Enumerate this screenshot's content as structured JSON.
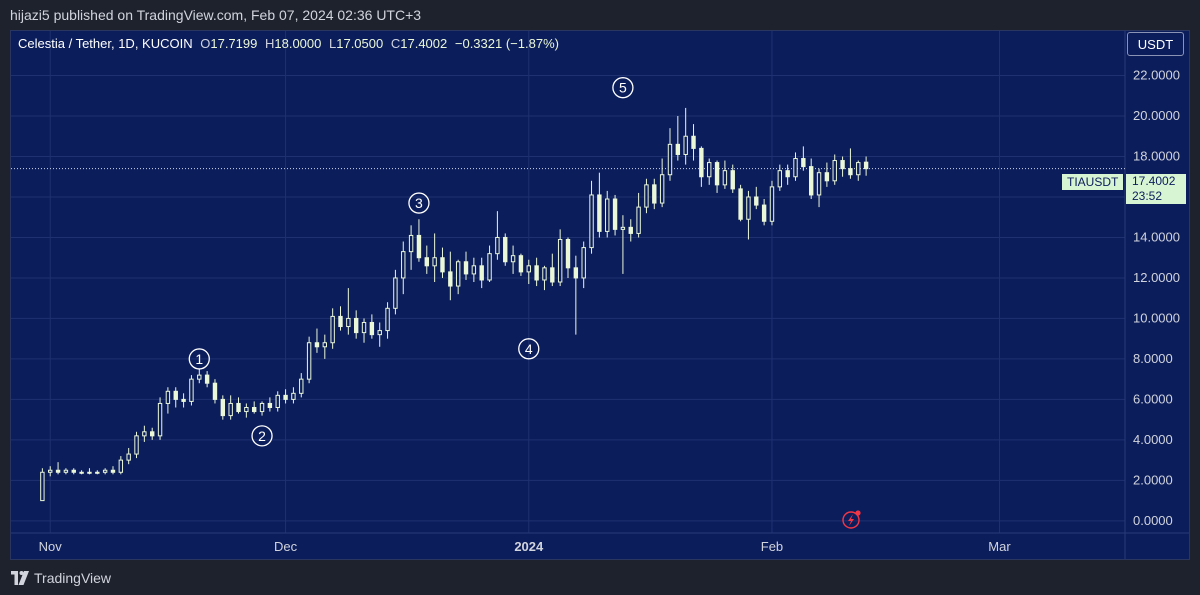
{
  "header": {
    "published_text": "hijazi5 published on TradingView.com, Feb 07, 2024 02:36 UTC+3"
  },
  "legend": {
    "symbol_text": "Celestia / Tether, 1D, KUCOIN",
    "o_label": "O",
    "o_value": "17.7199",
    "h_label": "H",
    "h_value": "18.0000",
    "l_label": "L",
    "l_value": "17.0500",
    "c_label": "C",
    "c_value": "17.4002",
    "change_text": "−0.3321 (−1.87%)"
  },
  "currency_button": "USDT",
  "price_tag": {
    "symbol": "TIAUSDT",
    "price": "17.4002",
    "countdown": "23:52"
  },
  "footer": {
    "brand": "TradingView"
  },
  "colors": {
    "background": "#0c1d5c",
    "candle": "#eaf8d8",
    "grid": "#1f3170",
    "tag": "#d7f5d2",
    "alert": "#f23645"
  },
  "chart_data": {
    "type": "candlestick",
    "title": "Celestia / Tether, 1D, KUCOIN",
    "xlabel": "",
    "ylabel": "USDT",
    "ylim": [
      -0.6,
      24.2
    ],
    "y_ticks": [
      0,
      2,
      4,
      6,
      8,
      10,
      12,
      14,
      16,
      18,
      20,
      22
    ],
    "y_tick_labels": [
      "0.0000",
      "2.0000",
      "4.0000",
      "6.0000",
      "8.0000",
      "10.0000",
      "12.0000",
      "14.0000",
      "16.0000",
      "18.0000",
      "20.0000",
      "22.0000"
    ],
    "x_domain": [
      "2023-10-27",
      "2024-03-17"
    ],
    "x_ticks": [
      {
        "date": "2023-11-01",
        "label": "Nov",
        "bold": false
      },
      {
        "date": "2023-12-01",
        "label": "Dec",
        "bold": false
      },
      {
        "date": "2024-01-01",
        "label": "2024",
        "bold": true
      },
      {
        "date": "2024-02-01",
        "label": "Feb",
        "bold": false
      },
      {
        "date": "2024-03-01",
        "label": "Mar",
        "bold": false
      }
    ],
    "start_date": "2023-10-31",
    "last_close": 17.4002,
    "candles": [
      [
        1.0,
        2.6,
        1.0,
        2.4
      ],
      [
        2.4,
        2.7,
        2.2,
        2.5
      ],
      [
        2.5,
        2.9,
        2.3,
        2.4
      ],
      [
        2.4,
        2.6,
        2.3,
        2.5
      ],
      [
        2.5,
        2.6,
        2.3,
        2.4
      ],
      [
        2.4,
        2.5,
        2.3,
        2.4
      ],
      [
        2.4,
        2.6,
        2.3,
        2.4
      ],
      [
        2.4,
        2.5,
        2.3,
        2.4
      ],
      [
        2.4,
        2.6,
        2.3,
        2.5
      ],
      [
        2.5,
        2.7,
        2.3,
        2.4
      ],
      [
        2.4,
        3.2,
        2.3,
        3.0
      ],
      [
        3.0,
        3.6,
        2.8,
        3.3
      ],
      [
        3.3,
        4.4,
        3.1,
        4.2
      ],
      [
        4.2,
        4.7,
        3.9,
        4.4
      ],
      [
        4.4,
        4.6,
        4.0,
        4.2
      ],
      [
        4.2,
        6.1,
        4.0,
        5.8
      ],
      [
        5.8,
        6.6,
        5.3,
        6.4
      ],
      [
        6.4,
        6.6,
        5.6,
        6.0
      ],
      [
        6.0,
        6.3,
        5.6,
        5.9
      ],
      [
        5.9,
        7.2,
        5.7,
        7.0
      ],
      [
        7.0,
        7.5,
        6.8,
        7.2
      ],
      [
        7.2,
        7.4,
        6.6,
        6.8
      ],
      [
        6.8,
        7.0,
        5.8,
        6.0
      ],
      [
        6.0,
        6.2,
        5.0,
        5.2
      ],
      [
        5.2,
        6.2,
        5.0,
        5.8
      ],
      [
        5.8,
        6.1,
        5.3,
        5.4
      ],
      [
        5.4,
        5.8,
        5.1,
        5.6
      ],
      [
        5.6,
        5.9,
        5.3,
        5.4
      ],
      [
        5.4,
        5.9,
        5.2,
        5.8
      ],
      [
        5.8,
        6.1,
        5.4,
        5.6
      ],
      [
        5.6,
        6.4,
        5.4,
        6.2
      ],
      [
        6.2,
        6.5,
        5.8,
        6.0
      ],
      [
        6.0,
        6.6,
        5.8,
        6.3
      ],
      [
        6.3,
        7.3,
        6.1,
        7.0
      ],
      [
        7.0,
        9.1,
        6.8,
        8.8
      ],
      [
        8.8,
        9.5,
        8.3,
        8.6
      ],
      [
        8.6,
        9.2,
        8.0,
        8.8
      ],
      [
        8.8,
        10.5,
        8.5,
        10.1
      ],
      [
        10.1,
        10.6,
        9.4,
        9.6
      ],
      [
        9.6,
        11.5,
        9.2,
        10.0
      ],
      [
        10.0,
        10.4,
        9.0,
        9.3
      ],
      [
        9.3,
        10.0,
        8.8,
        9.8
      ],
      [
        9.8,
        10.2,
        9.0,
        9.2
      ],
      [
        9.2,
        9.8,
        8.6,
        9.4
      ],
      [
        9.4,
        10.8,
        9.0,
        10.5
      ],
      [
        10.5,
        12.4,
        10.2,
        12.0
      ],
      [
        12.0,
        13.8,
        11.2,
        13.3
      ],
      [
        13.3,
        14.6,
        12.4,
        14.1
      ],
      [
        14.1,
        14.9,
        12.8,
        13.0
      ],
      [
        13.0,
        13.6,
        12.2,
        12.6
      ],
      [
        12.6,
        14.2,
        11.8,
        13.0
      ],
      [
        13.0,
        13.5,
        12.0,
        12.3
      ],
      [
        12.3,
        13.3,
        10.9,
        11.6
      ],
      [
        11.6,
        12.9,
        11.2,
        12.8
      ],
      [
        12.8,
        13.3,
        11.9,
        12.2
      ],
      [
        12.2,
        13.0,
        11.8,
        12.6
      ],
      [
        12.6,
        13.0,
        11.5,
        11.9
      ],
      [
        11.9,
        13.6,
        11.8,
        13.2
      ],
      [
        13.2,
        15.3,
        12.9,
        14.0
      ],
      [
        14.0,
        14.2,
        12.6,
        12.8
      ],
      [
        12.8,
        13.6,
        12.2,
        13.1
      ],
      [
        13.1,
        13.2,
        12.1,
        12.3
      ],
      [
        12.3,
        12.9,
        11.7,
        12.6
      ],
      [
        12.6,
        13.0,
        11.6,
        11.9
      ],
      [
        11.9,
        12.6,
        11.4,
        12.5
      ],
      [
        12.5,
        13.2,
        11.6,
        11.8
      ],
      [
        11.8,
        14.4,
        11.6,
        13.9
      ],
      [
        13.9,
        14.0,
        12.0,
        12.5
      ],
      [
        12.5,
        13.1,
        9.2,
        12.0
      ],
      [
        12.0,
        13.8,
        11.5,
        13.5
      ],
      [
        13.5,
        16.8,
        13.2,
        16.1
      ],
      [
        16.1,
        17.2,
        14.0,
        14.3
      ],
      [
        14.3,
        16.3,
        14.0,
        15.9
      ],
      [
        15.9,
        16.1,
        14.1,
        14.4
      ],
      [
        14.4,
        15.1,
        12.2,
        14.5
      ],
      [
        14.5,
        14.9,
        13.8,
        14.2
      ],
      [
        14.2,
        16.2,
        14.0,
        15.5
      ],
      [
        15.5,
        16.9,
        15.2,
        16.6
      ],
      [
        16.6,
        16.9,
        15.4,
        15.7
      ],
      [
        15.7,
        17.9,
        15.5,
        17.1
      ],
      [
        17.1,
        19.4,
        16.8,
        18.6
      ],
      [
        18.6,
        20.0,
        17.8,
        18.1
      ],
      [
        18.1,
        20.4,
        17.6,
        19.0
      ],
      [
        19.0,
        19.6,
        17.8,
        18.4
      ],
      [
        18.4,
        18.5,
        16.5,
        17.0
      ],
      [
        17.0,
        17.9,
        16.6,
        17.7
      ],
      [
        17.7,
        17.8,
        16.2,
        16.6
      ],
      [
        16.6,
        17.8,
        16.4,
        17.3
      ],
      [
        17.3,
        17.6,
        16.2,
        16.4
      ],
      [
        16.4,
        16.6,
        14.8,
        14.9
      ],
      [
        14.9,
        16.3,
        13.9,
        16.0
      ],
      [
        16.0,
        16.5,
        15.4,
        15.6
      ],
      [
        15.6,
        15.9,
        14.6,
        14.8
      ],
      [
        14.8,
        16.8,
        14.6,
        16.5
      ],
      [
        16.5,
        17.6,
        16.3,
        17.3
      ],
      [
        17.3,
        17.6,
        16.6,
        17.0
      ],
      [
        17.0,
        18.2,
        16.8,
        17.9
      ],
      [
        17.9,
        18.5,
        17.3,
        17.5
      ],
      [
        17.5,
        17.9,
        15.9,
        16.1
      ],
      [
        16.1,
        17.4,
        15.5,
        17.2
      ],
      [
        17.2,
        17.7,
        16.5,
        16.8
      ],
      [
        16.8,
        18.1,
        16.6,
        17.8
      ],
      [
        17.8,
        18.0,
        17.0,
        17.4
      ],
      [
        17.4,
        18.4,
        16.9,
        17.1
      ],
      [
        17.1,
        17.8,
        16.8,
        17.7
      ],
      [
        17.7199,
        18.0,
        17.05,
        17.4002
      ]
    ],
    "annotations": [
      {
        "label": "1",
        "date": "2023-11-20",
        "price": 8.0
      },
      {
        "label": "2",
        "date": "2023-11-28",
        "price": 4.2
      },
      {
        "label": "3",
        "date": "2023-12-18",
        "price": 15.7
      },
      {
        "label": "4",
        "date": "2024-01-01",
        "price": 8.5
      },
      {
        "label": "5",
        "date": "2024-01-13",
        "price": 21.4
      }
    ]
  }
}
